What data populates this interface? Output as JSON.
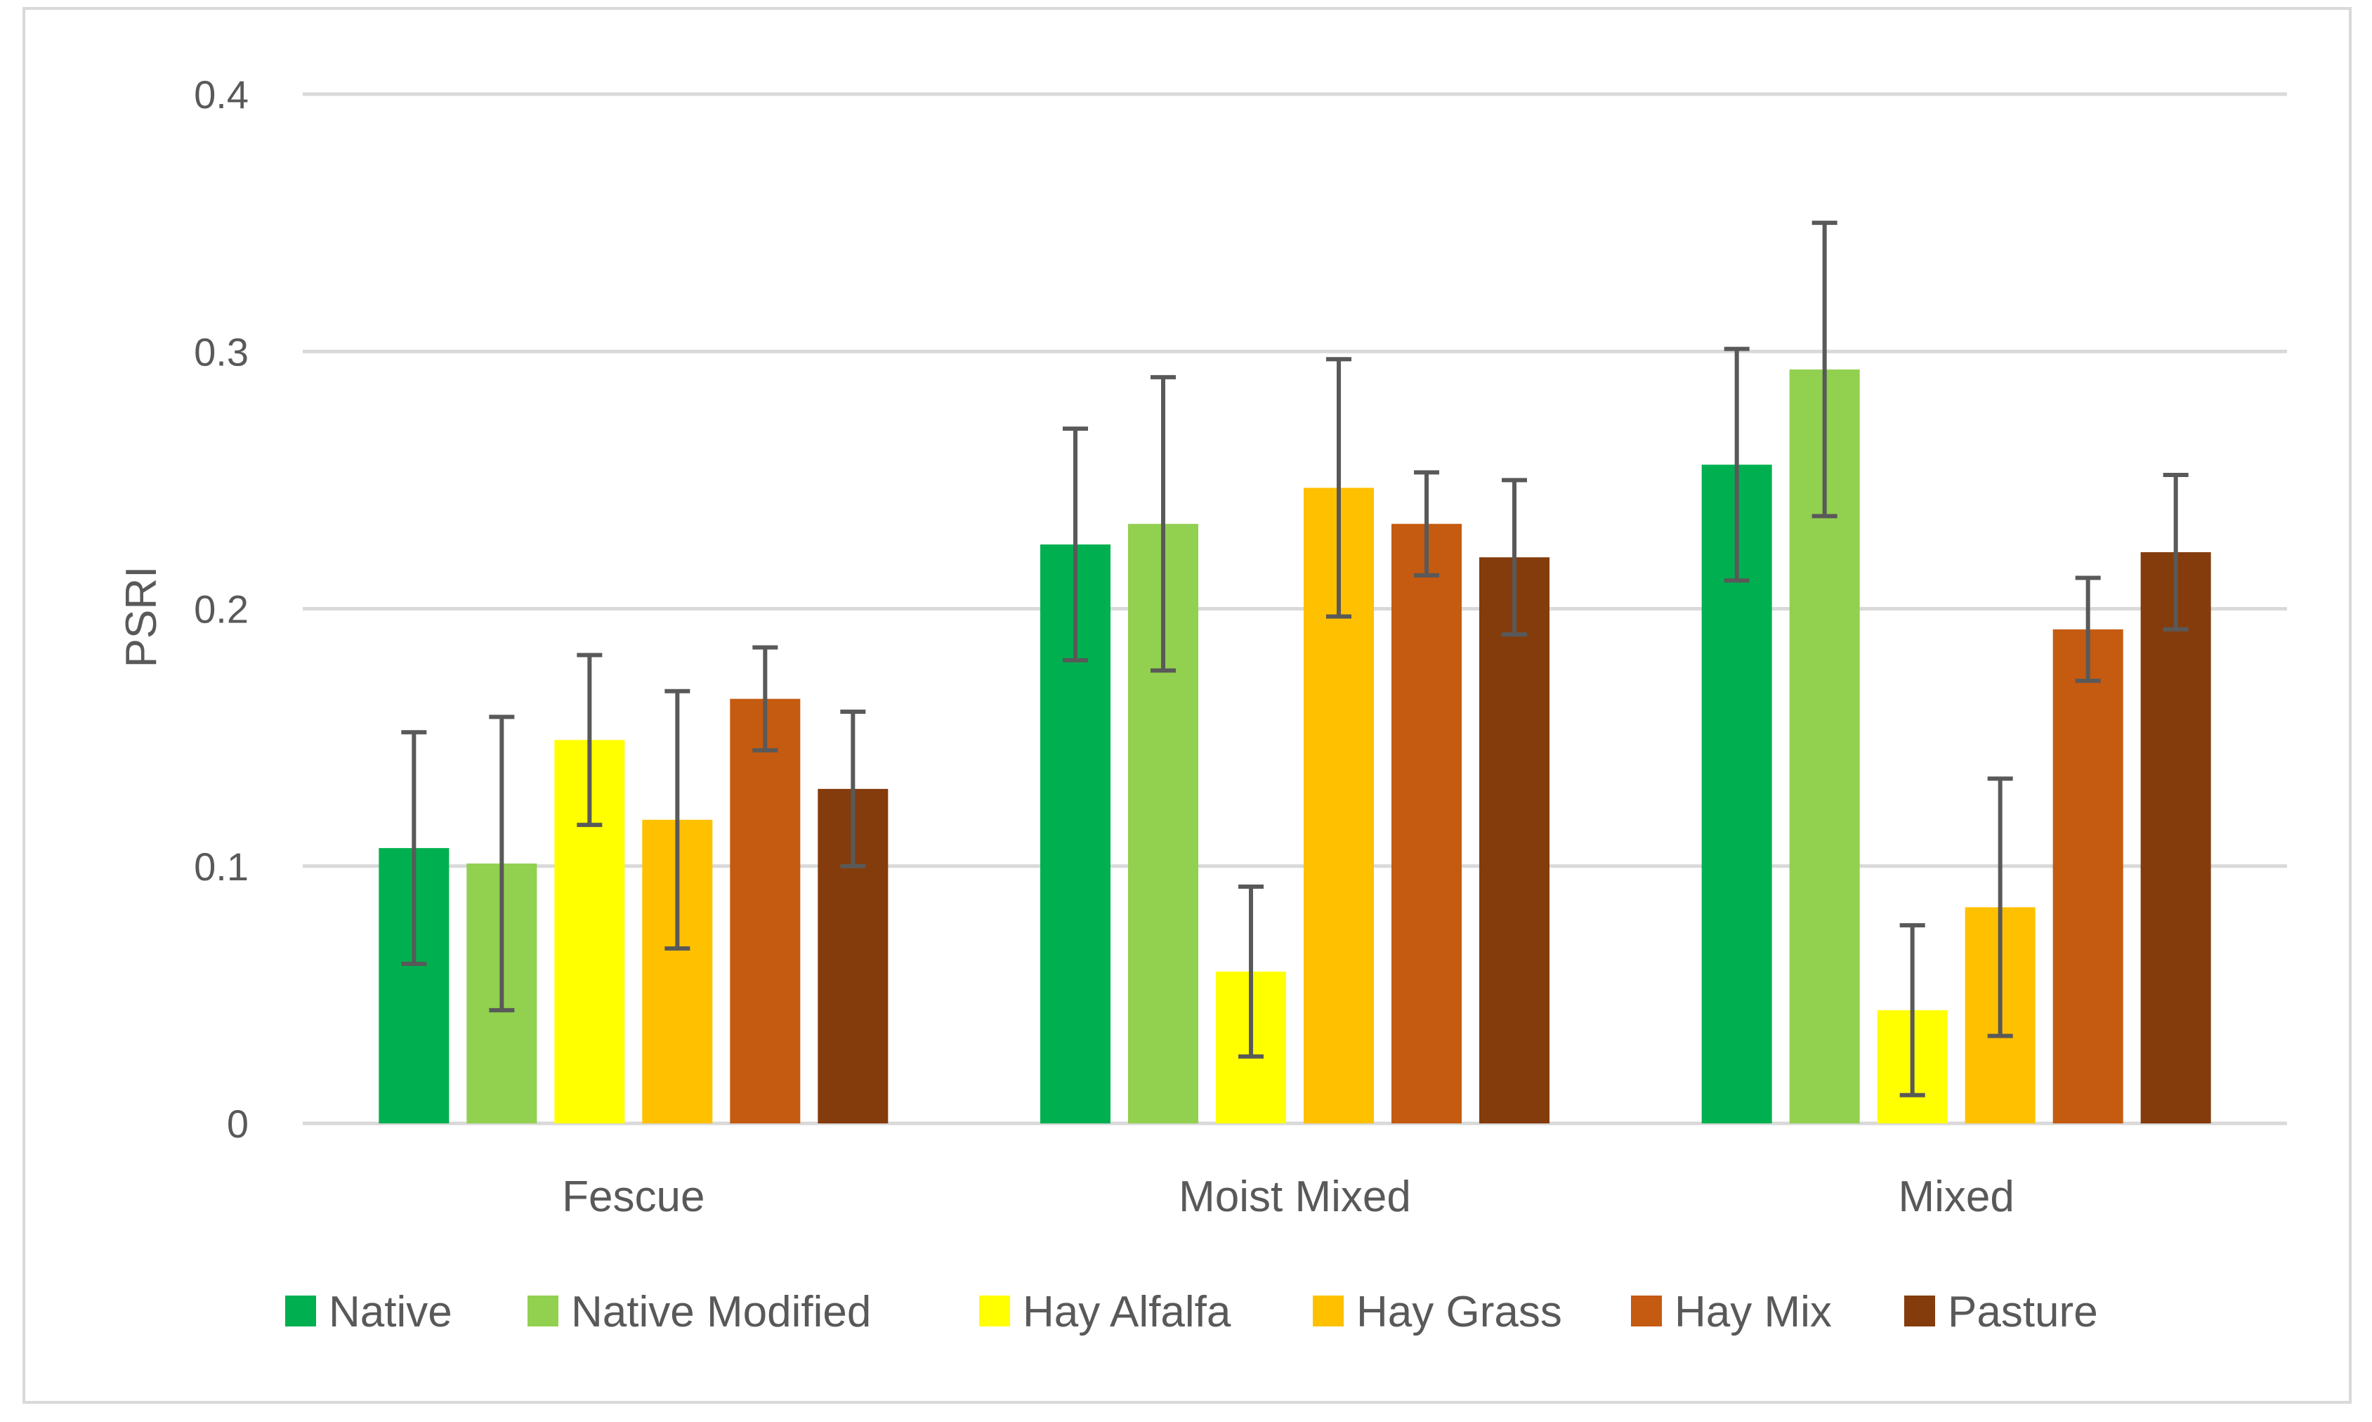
{
  "chart_data": {
    "type": "bar",
    "title": "",
    "xlabel": "",
    "ylabel": "PSRI",
    "ylim": [
      0,
      0.4
    ],
    "yticks": [
      "0",
      "0.1",
      "0.2",
      "0.3",
      "0.4"
    ],
    "grid": true,
    "legend_position": "bottom",
    "categories": [
      "Fescue",
      "Moist Mixed",
      "Mixed"
    ],
    "series": [
      {
        "name": "Native",
        "color": "#00b050",
        "values": [
          0.107,
          0.225,
          0.256
        ],
        "errors": [
          0.045,
          0.045,
          0.045
        ]
      },
      {
        "name": "Native Modified",
        "color": "#92d050",
        "values": [
          0.101,
          0.233,
          0.293
        ],
        "errors": [
          0.057,
          0.057,
          0.057
        ]
      },
      {
        "name": "Hay Alfalfa",
        "color": "#ffff00",
        "values": [
          0.149,
          0.059,
          0.044
        ],
        "errors": [
          0.033,
          0.033,
          0.033
        ]
      },
      {
        "name": "Hay Grass",
        "color": "#ffc000",
        "values": [
          0.118,
          0.247,
          0.084
        ],
        "errors": [
          0.05,
          0.05,
          0.05
        ]
      },
      {
        "name": "Hay Mix",
        "color": "#c55a11",
        "values": [
          0.165,
          0.233,
          0.192
        ],
        "errors": [
          0.02,
          0.02,
          0.02
        ]
      },
      {
        "name": "Pasture",
        "color": "#843c0c",
        "values": [
          0.13,
          0.22,
          0.222
        ],
        "errors": [
          0.03,
          0.03,
          0.03
        ]
      }
    ]
  }
}
